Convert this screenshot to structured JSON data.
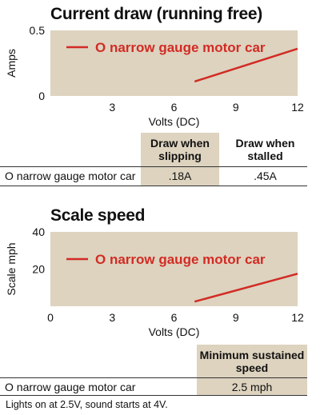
{
  "chart_data": [
    {
      "type": "line",
      "title": "Current draw (running free)",
      "xlabel": "Volts (DC)",
      "ylabel": "Amps",
      "xlim": [
        0,
        12
      ],
      "ylim": [
        0,
        0.5
      ],
      "x_ticks": [
        "3",
        "6",
        "9",
        "12"
      ],
      "y_ticks": [
        "0",
        "0.5"
      ],
      "grid": false,
      "legend_position": "top-left (inside plot)",
      "series": [
        {
          "name": "O narrow gauge motor car",
          "color": "#d22b24",
          "points": [
            {
              "x": 7,
              "y": 0.11
            },
            {
              "x": 12,
              "y": 0.36
            }
          ]
        }
      ]
    },
    {
      "type": "line",
      "title": "Scale speed",
      "xlabel": "Volts (DC)",
      "ylabel": "Scale mph",
      "xlim": [
        0,
        12
      ],
      "ylim": [
        0,
        40
      ],
      "x_ticks": [
        "0",
        "3",
        "6",
        "9",
        "12"
      ],
      "y_ticks": [
        "20",
        "40"
      ],
      "grid": false,
      "legend_position": "top-left (inside plot)",
      "series": [
        {
          "name": "O narrow gauge motor car",
          "color": "#d22b24",
          "points": [
            {
              "x": 7,
              "y": 2.5
            },
            {
              "x": 12,
              "y": 17.5
            }
          ]
        }
      ]
    }
  ],
  "colors": {
    "plot_bg": "#ddd3bf",
    "series": "#d22b24",
    "text": "#111111"
  },
  "table1": {
    "headers": [
      "Draw when slipping",
      "Draw when stalled"
    ],
    "row_label": "O narrow gauge motor car",
    "values": [
      ".18A",
      ".45A"
    ]
  },
  "table2": {
    "headers": [
      "Minimum sustained speed"
    ],
    "row_label": "O narrow gauge motor car",
    "values": [
      "2.5 mph"
    ]
  },
  "footnote": "Lights on at 2.5V, sound starts at 4V."
}
